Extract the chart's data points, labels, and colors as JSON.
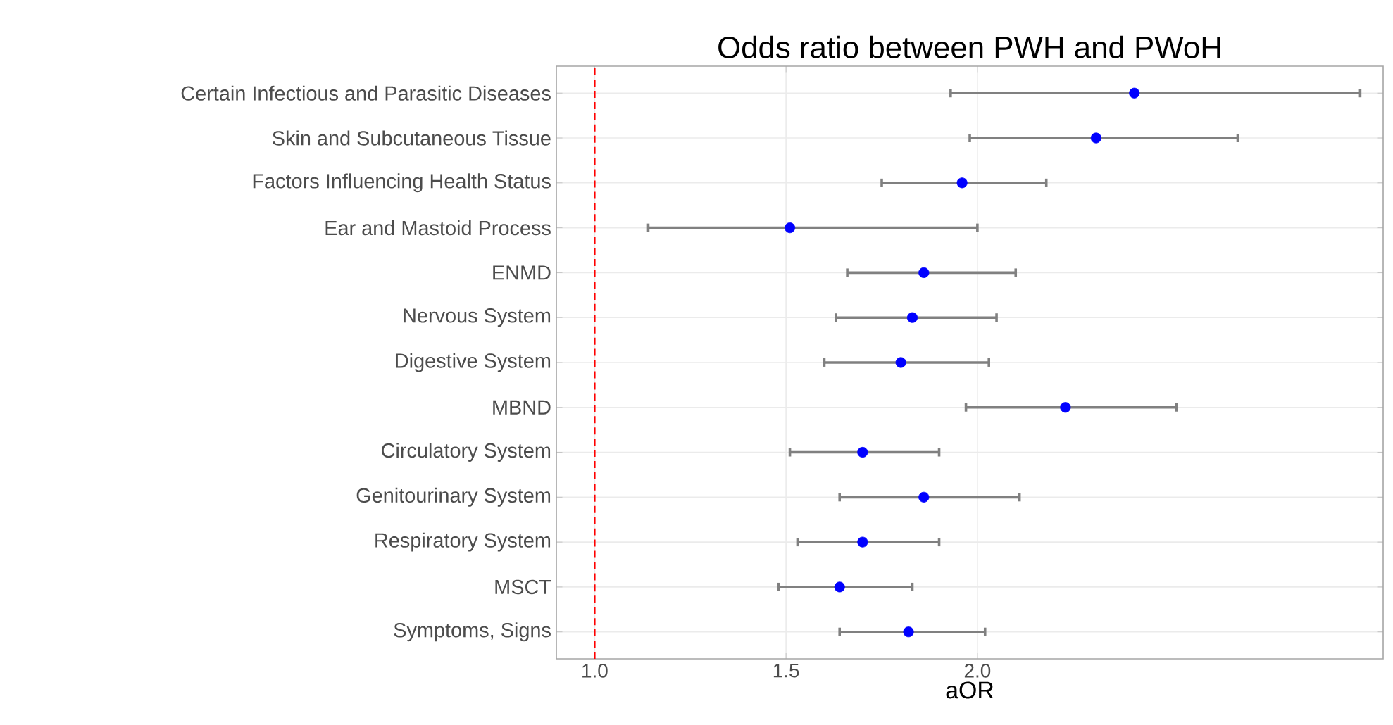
{
  "chart_data": {
    "type": "scatter",
    "orientation": "horizontal",
    "title": "Odds ratio between PWH and PWoH",
    "xlabel": "aOR",
    "categories": [
      "Certain Infectious and Parasitic Diseases",
      "Skin and Subcutaneous Tissue",
      "Factors Influencing Health Status",
      "Ear and Mastoid Process",
      "ENMD",
      "Nervous System",
      "Digestive System",
      "MBND",
      "Circulatory System",
      "Genitourinary System",
      "Respiratory System",
      "MSCT",
      "Symptoms, Signs"
    ],
    "values": [
      2.41,
      2.31,
      1.96,
      1.51,
      1.86,
      1.83,
      1.8,
      2.23,
      1.7,
      1.86,
      1.7,
      1.64,
      1.82
    ],
    "errors": [
      [
        1.93,
        3.0
      ],
      [
        1.98,
        2.68
      ],
      [
        1.75,
        2.18
      ],
      [
        1.14,
        2.0
      ],
      [
        1.66,
        2.1
      ],
      [
        1.63,
        2.05
      ],
      [
        1.6,
        2.03
      ],
      [
        1.97,
        2.52
      ],
      [
        1.51,
        1.9
      ],
      [
        1.64,
        2.11
      ],
      [
        1.53,
        1.9
      ],
      [
        1.48,
        1.83
      ],
      [
        1.64,
        2.02
      ]
    ],
    "color": "#0000ff",
    "marker": "circle",
    "xlim": [
      0.9,
      3.06
    ],
    "xticks": [
      {
        "value": 1,
        "label": "1.0"
      },
      {
        "value": 1.5,
        "label": "1.5"
      },
      {
        "value": 2,
        "label": "2.0"
      }
    ],
    "grid": true,
    "ref_lines": [
      {
        "axis": "x",
        "value": 1,
        "color": "#ff0000",
        "line_style": "dashed"
      }
    ]
  }
}
